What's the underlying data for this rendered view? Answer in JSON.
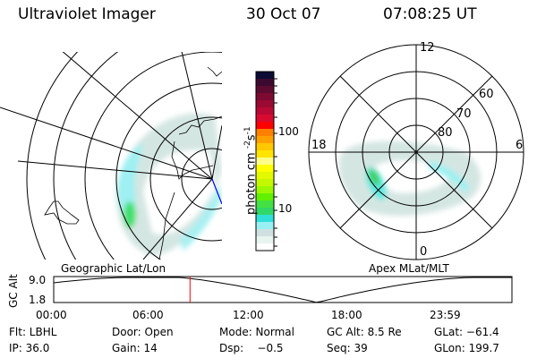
{
  "header": {
    "title": "Ultraviolet Imager",
    "date": "30 Oct 07",
    "time": "07:08:25 UT"
  },
  "colorbar": {
    "label": "photon cm",
    "exp1": "-2",
    "mid": "s",
    "exp2": "-1",
    "ticks": [
      "100",
      "10"
    ],
    "colors": [
      "#0c0c34",
      "#3c0a30",
      "#5c0a30",
      "#7c0a32",
      "#9a0a32",
      "#b80a34",
      "#d80a30",
      "#ff0000",
      "#ff8000",
      "#ffa000",
      "#ffc800",
      "#ffe400",
      "#ffff88",
      "#ffff00",
      "#e4f800",
      "#c4f800",
      "#9cf800",
      "#60f000",
      "#44e044",
      "#30d868",
      "#30e0d8",
      "#98f0f4",
      "#d0e0e0",
      "#e8f4ef",
      "#ffffff"
    ]
  },
  "polar": {
    "labels": {
      "top": "12",
      "left": "18",
      "right": "6",
      "bottom": "0"
    },
    "circles": [
      "80",
      "70",
      "60"
    ]
  },
  "left_map_label": "Geographic Lat/Lon",
  "right_map_label": "Apex MLat/MLT",
  "timeline": {
    "ylabel": "GC Alt",
    "yticks": [
      "9.0",
      "1.8"
    ],
    "xticks": [
      "00:00",
      "06:00",
      "12:00",
      "18:00",
      "23:59"
    ],
    "current_time_hours": 7.14,
    "marker_color": "#ff0000"
  },
  "info": [
    [
      "Flt: LBHL",
      "Door: Open",
      "Mode: Normal",
      "GC Alt: 8.5 Re",
      "GLat: −61.4"
    ],
    [
      "IP: 36.0",
      "Gain: 14",
      "Dsp:    −0.5",
      "Seq: 39",
      "GLon: 199.7"
    ]
  ]
}
